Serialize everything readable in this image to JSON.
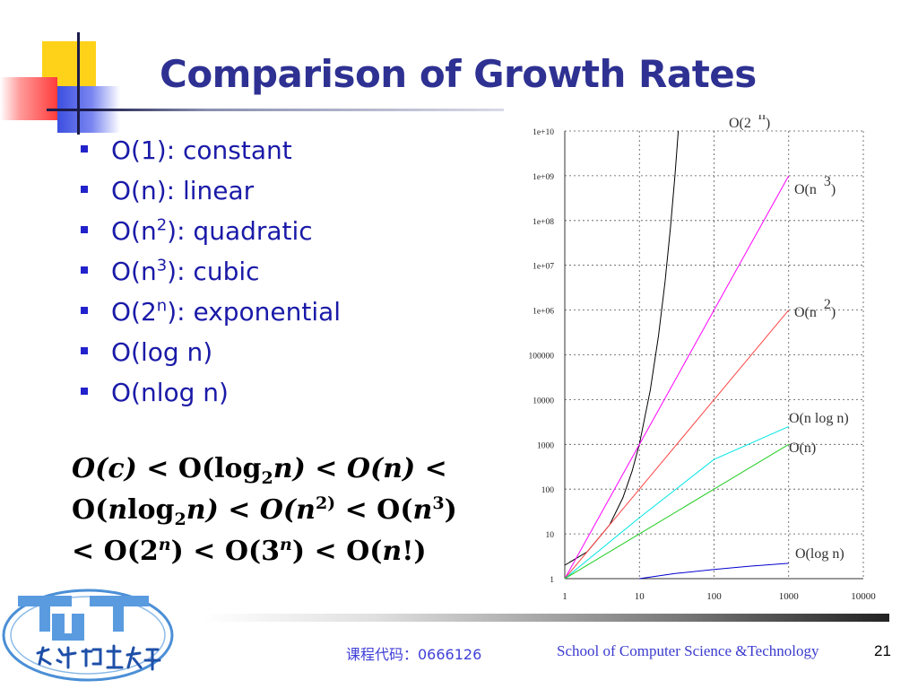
{
  "slide": {
    "title": "Comparison of Growth Rates",
    "bullets": [
      {
        "pre": "O(1): constant",
        "sup": "",
        "post": ""
      },
      {
        "pre": "O(n): linear",
        "sup": "",
        "post": ""
      },
      {
        "pre": "O(n",
        "sup": "2",
        "post": "): quadratic"
      },
      {
        "pre": "O(n",
        "sup": "3",
        "post": "): cubic"
      },
      {
        "pre": "O(2",
        "sup": "n",
        "post": "): exponential"
      },
      {
        "pre": "O(log n)",
        "sup": "",
        "post": ""
      },
      {
        "pre": "O(nlog n)",
        "sup": "",
        "post": ""
      }
    ],
    "inequality": {
      "line1": {
        "a": "O(c)",
        "b": " < O(log",
        "c": "2",
        "d": "n",
        "e": ") < O(",
        "f": "n",
        "g": ") <"
      },
      "line2": {
        "a": "O(",
        "b": "n",
        "c": "log",
        "d": "2",
        "e": "n",
        "f": ") < O(",
        "g": "n",
        "h": "2)",
        "i": " < O(",
        "j": "n",
        "k": "3",
        "l": ")"
      },
      "line3": {
        "a": "< O(2",
        "b": "n",
        "c": ") < O(3",
        "d": "n",
        "e": ") < O(",
        "f": "n",
        "g": "!)"
      }
    }
  },
  "footer": {
    "course_code": "课程代码：0666126",
    "school": "School of Computer Science &Technology",
    "page_number": "21",
    "logo_text": "天津理工大学"
  },
  "colors": {
    "title": "#2e3192",
    "bullet_text": "#1a1aa8",
    "bg": "#ffffff"
  },
  "chart_data": {
    "type": "line",
    "x_scale": "log",
    "y_scale": "log",
    "xlim": [
      1,
      10000
    ],
    "ylim": [
      1,
      10000000000
    ],
    "x_ticks": [
      "1",
      "10",
      "100",
      "1000",
      "10000"
    ],
    "y_ticks": [
      "1",
      "10",
      "100",
      "1000",
      "10000",
      "100000",
      "1e+06",
      "1e+07",
      "1e+08",
      "1e+09",
      "1e+10"
    ],
    "grid": true,
    "series": [
      {
        "name": "O(2 n)",
        "label_main": "O(2",
        "label_sup": "n",
        "label_post": ")",
        "color": "#000000",
        "x": [
          1,
          2,
          4,
          6,
          8,
          10,
          14,
          18,
          22,
          26,
          30,
          33.2
        ],
        "y": [
          2,
          4,
          16,
          64,
          256,
          1024,
          16384,
          262144,
          4194304,
          67108864,
          1073741824,
          10000000000
        ]
      },
      {
        "name": "O(n 3)",
        "label_main": "O(n",
        "label_sup": "3",
        "label_post": ")",
        "color": "#ff00ff",
        "x": [
          1,
          10,
          100,
          1000
        ],
        "y": [
          1,
          1000,
          1000000,
          1000000000
        ]
      },
      {
        "name": "O(n 2)",
        "label_main": "O(n",
        "label_sup": "2",
        "label_post": ")",
        "color": "#ff4444",
        "x": [
          1,
          10,
          100,
          1000
        ],
        "y": [
          1,
          100,
          10000,
          1000000
        ]
      },
      {
        "name": "O(n log n)",
        "label_main": "O(n log n)",
        "label_sup": "",
        "label_post": "",
        "color": "#00e5e5",
        "x": [
          1,
          10,
          100,
          1000
        ],
        "y": [
          1,
          23,
          460,
          2500
        ]
      },
      {
        "name": "O(n)",
        "label_main": "O(n)",
        "label_sup": "",
        "label_post": "",
        "color": "#22cc22",
        "x": [
          1,
          10,
          100,
          1000
        ],
        "y": [
          1,
          10,
          100,
          1000
        ]
      },
      {
        "name": "O(log n)",
        "label_main": "O(log n)",
        "label_sup": "",
        "label_post": "",
        "color": "#0000cc",
        "x": [
          10,
          30,
          100,
          300,
          1000
        ],
        "y": [
          1,
          1.3,
          1.6,
          1.9,
          2.2
        ]
      }
    ]
  }
}
